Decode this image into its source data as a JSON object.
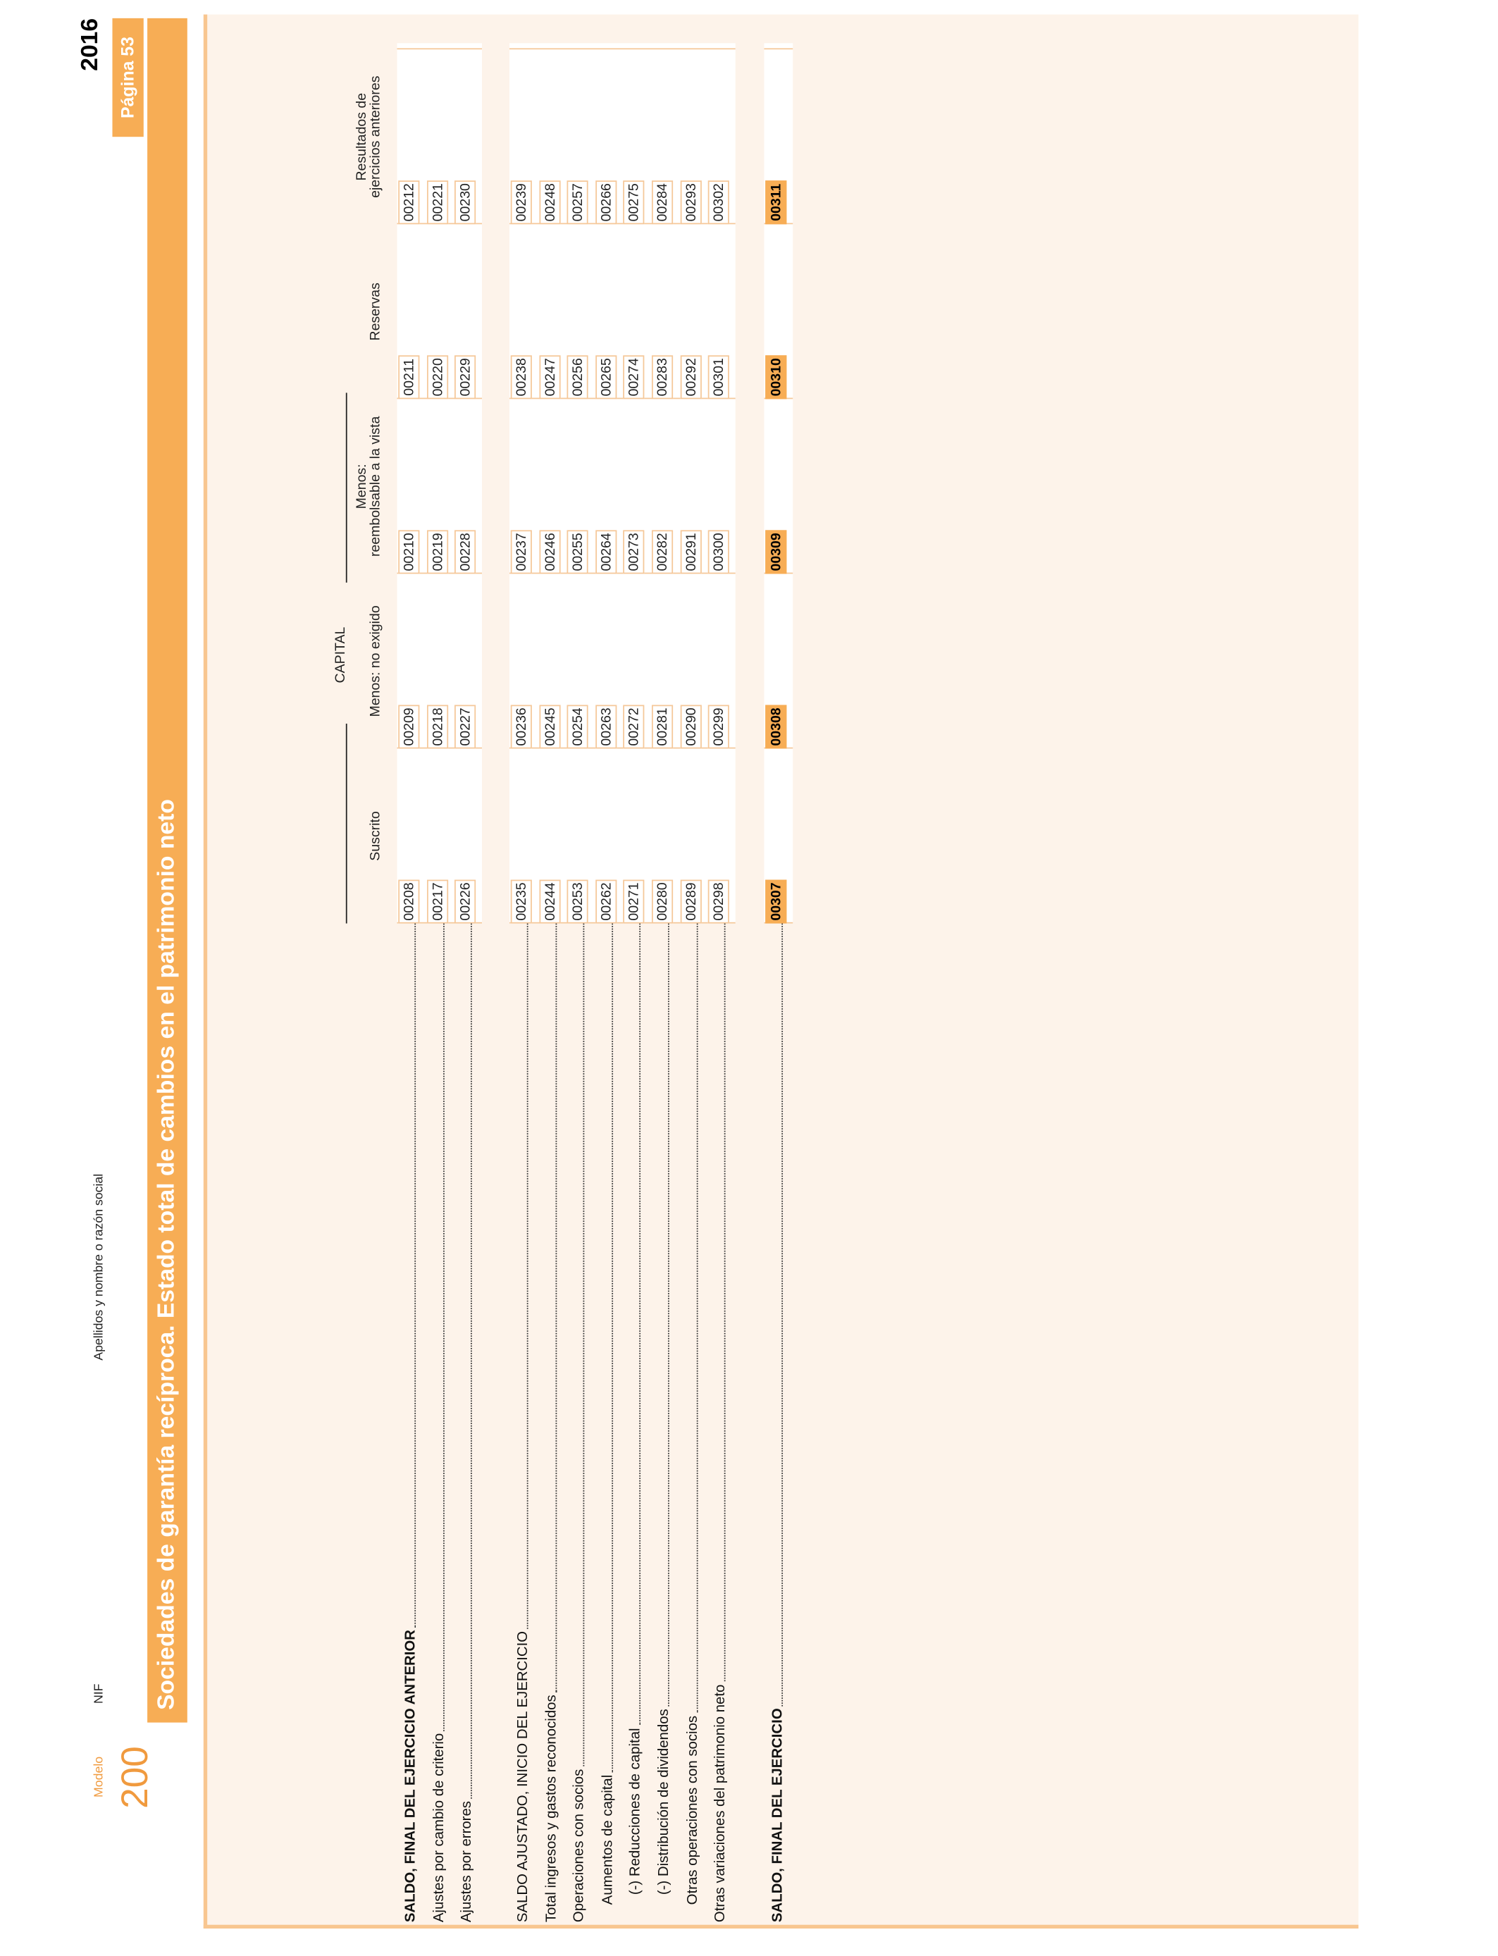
{
  "header": {
    "modelo_label": "Modelo",
    "modelo": "200",
    "nif_label": "NIF",
    "name_label": "Apellidos y nombre o razón social",
    "year": "2016",
    "page": "Página 53"
  },
  "title": "Sociedades de garantía recíproca. Estado total de cambios en el patrimonio neto",
  "table": {
    "group_header": "CAPITAL",
    "columns": [
      [
        "Suscrito"
      ],
      [
        "Menos: no exigido"
      ],
      [
        "Menos:",
        "reembolsable a la vista"
      ],
      [
        "Reservas"
      ],
      [
        "Resultados de",
        "ejercicios anteriores"
      ]
    ],
    "groups": [
      [
        {
          "label": "SALDO, FINAL DEL EJERCICIO ANTERIOR",
          "bold": true,
          "codes": [
            "00208",
            "00209",
            "00210",
            "00211",
            "00212"
          ]
        },
        {
          "label": "Ajustes por cambio de criterio",
          "codes": [
            "00217",
            "00218",
            "00219",
            "00220",
            "00221"
          ]
        },
        {
          "label": "Ajustes por errores",
          "codes": [
            "00226",
            "00227",
            "00228",
            "00229",
            "00230"
          ]
        }
      ],
      [
        {
          "label": "SALDO AJUSTADO, INICIO DEL EJERCICIO",
          "codes": [
            "00235",
            "00236",
            "00237",
            "00238",
            "00239"
          ]
        },
        {
          "label": "Total ingresos y gastos reconocidos",
          "codes": [
            "00244",
            "00245",
            "00246",
            "00247",
            "00248"
          ]
        },
        {
          "label": "Operaciones con socios",
          "codes": [
            "00253",
            "00254",
            "00255",
            "00256",
            "00257"
          ]
        },
        {
          "label": "Aumentos de capital",
          "codes": [
            "00262",
            "00263",
            "00264",
            "00265",
            "00266"
          ]
        },
        {
          "label": "(-) Reducciones de capital",
          "codes": [
            "00271",
            "00272",
            "00273",
            "00274",
            "00275"
          ]
        },
        {
          "label": "(-) Distribución de dividendos",
          "codes": [
            "00280",
            "00281",
            "00282",
            "00283",
            "00284"
          ]
        },
        {
          "label": "Otras operaciones con socios",
          "codes": [
            "00289",
            "00290",
            "00291",
            "00292",
            "00293"
          ]
        },
        {
          "label": "Otras variaciones del patrimonio neto",
          "codes": [
            "00298",
            "00299",
            "00300",
            "00301",
            "00302"
          ]
        }
      ],
      [
        {
          "label": "SALDO, FINAL DEL EJERCICIO",
          "bold": true,
          "highlight": true,
          "codes": [
            "00307",
            "00308",
            "00309",
            "00310",
            "00311"
          ]
        }
      ]
    ]
  }
}
